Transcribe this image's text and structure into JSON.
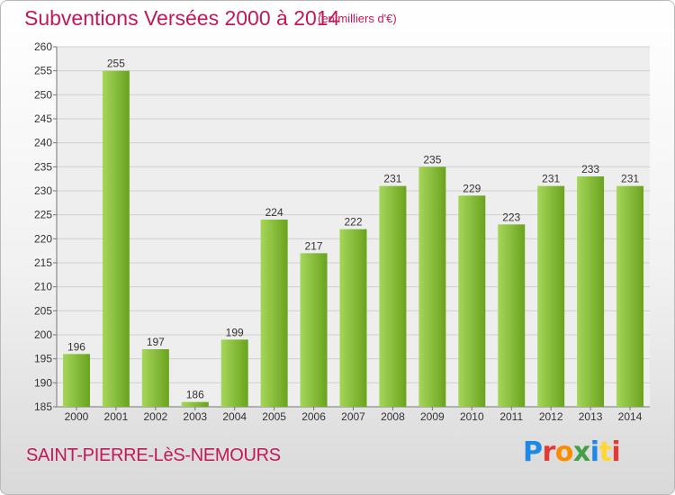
{
  "header": {
    "title": "Subventions Versées 2000 à 2014",
    "unit": "(en milliers d'€)"
  },
  "footer": {
    "commune": "SAINT-PIERRE-LèS-NEMOURS",
    "logo_letters": [
      "P",
      "r",
      "o",
      "x",
      "i",
      "t",
      "i"
    ],
    "logo_colors": [
      "#1e88e5",
      "#e53935",
      "#fb8c00",
      "#43a047",
      "#1e88e5",
      "#fdd835",
      "#e53935"
    ]
  },
  "chart_data": {
    "type": "bar",
    "title": "Subventions Versées 2000 à 2014",
    "subtitle": "(en milliers d'€)",
    "categories": [
      "2000",
      "2001",
      "2002",
      "2003",
      "2004",
      "2005",
      "2006",
      "2007",
      "2008",
      "2009",
      "2010",
      "2011",
      "2012",
      "2013",
      "2014"
    ],
    "values": [
      196,
      255,
      197,
      186,
      199,
      224,
      217,
      222,
      231,
      235,
      229,
      223,
      231,
      233,
      231
    ],
    "ylim": [
      185,
      260
    ],
    "yticks": [
      185,
      190,
      195,
      200,
      205,
      210,
      215,
      220,
      225,
      230,
      235,
      240,
      245,
      250,
      255,
      260
    ],
    "grid": true,
    "bar_color_light": "#a5d65a",
    "bar_color_dark": "#6aa31e"
  }
}
